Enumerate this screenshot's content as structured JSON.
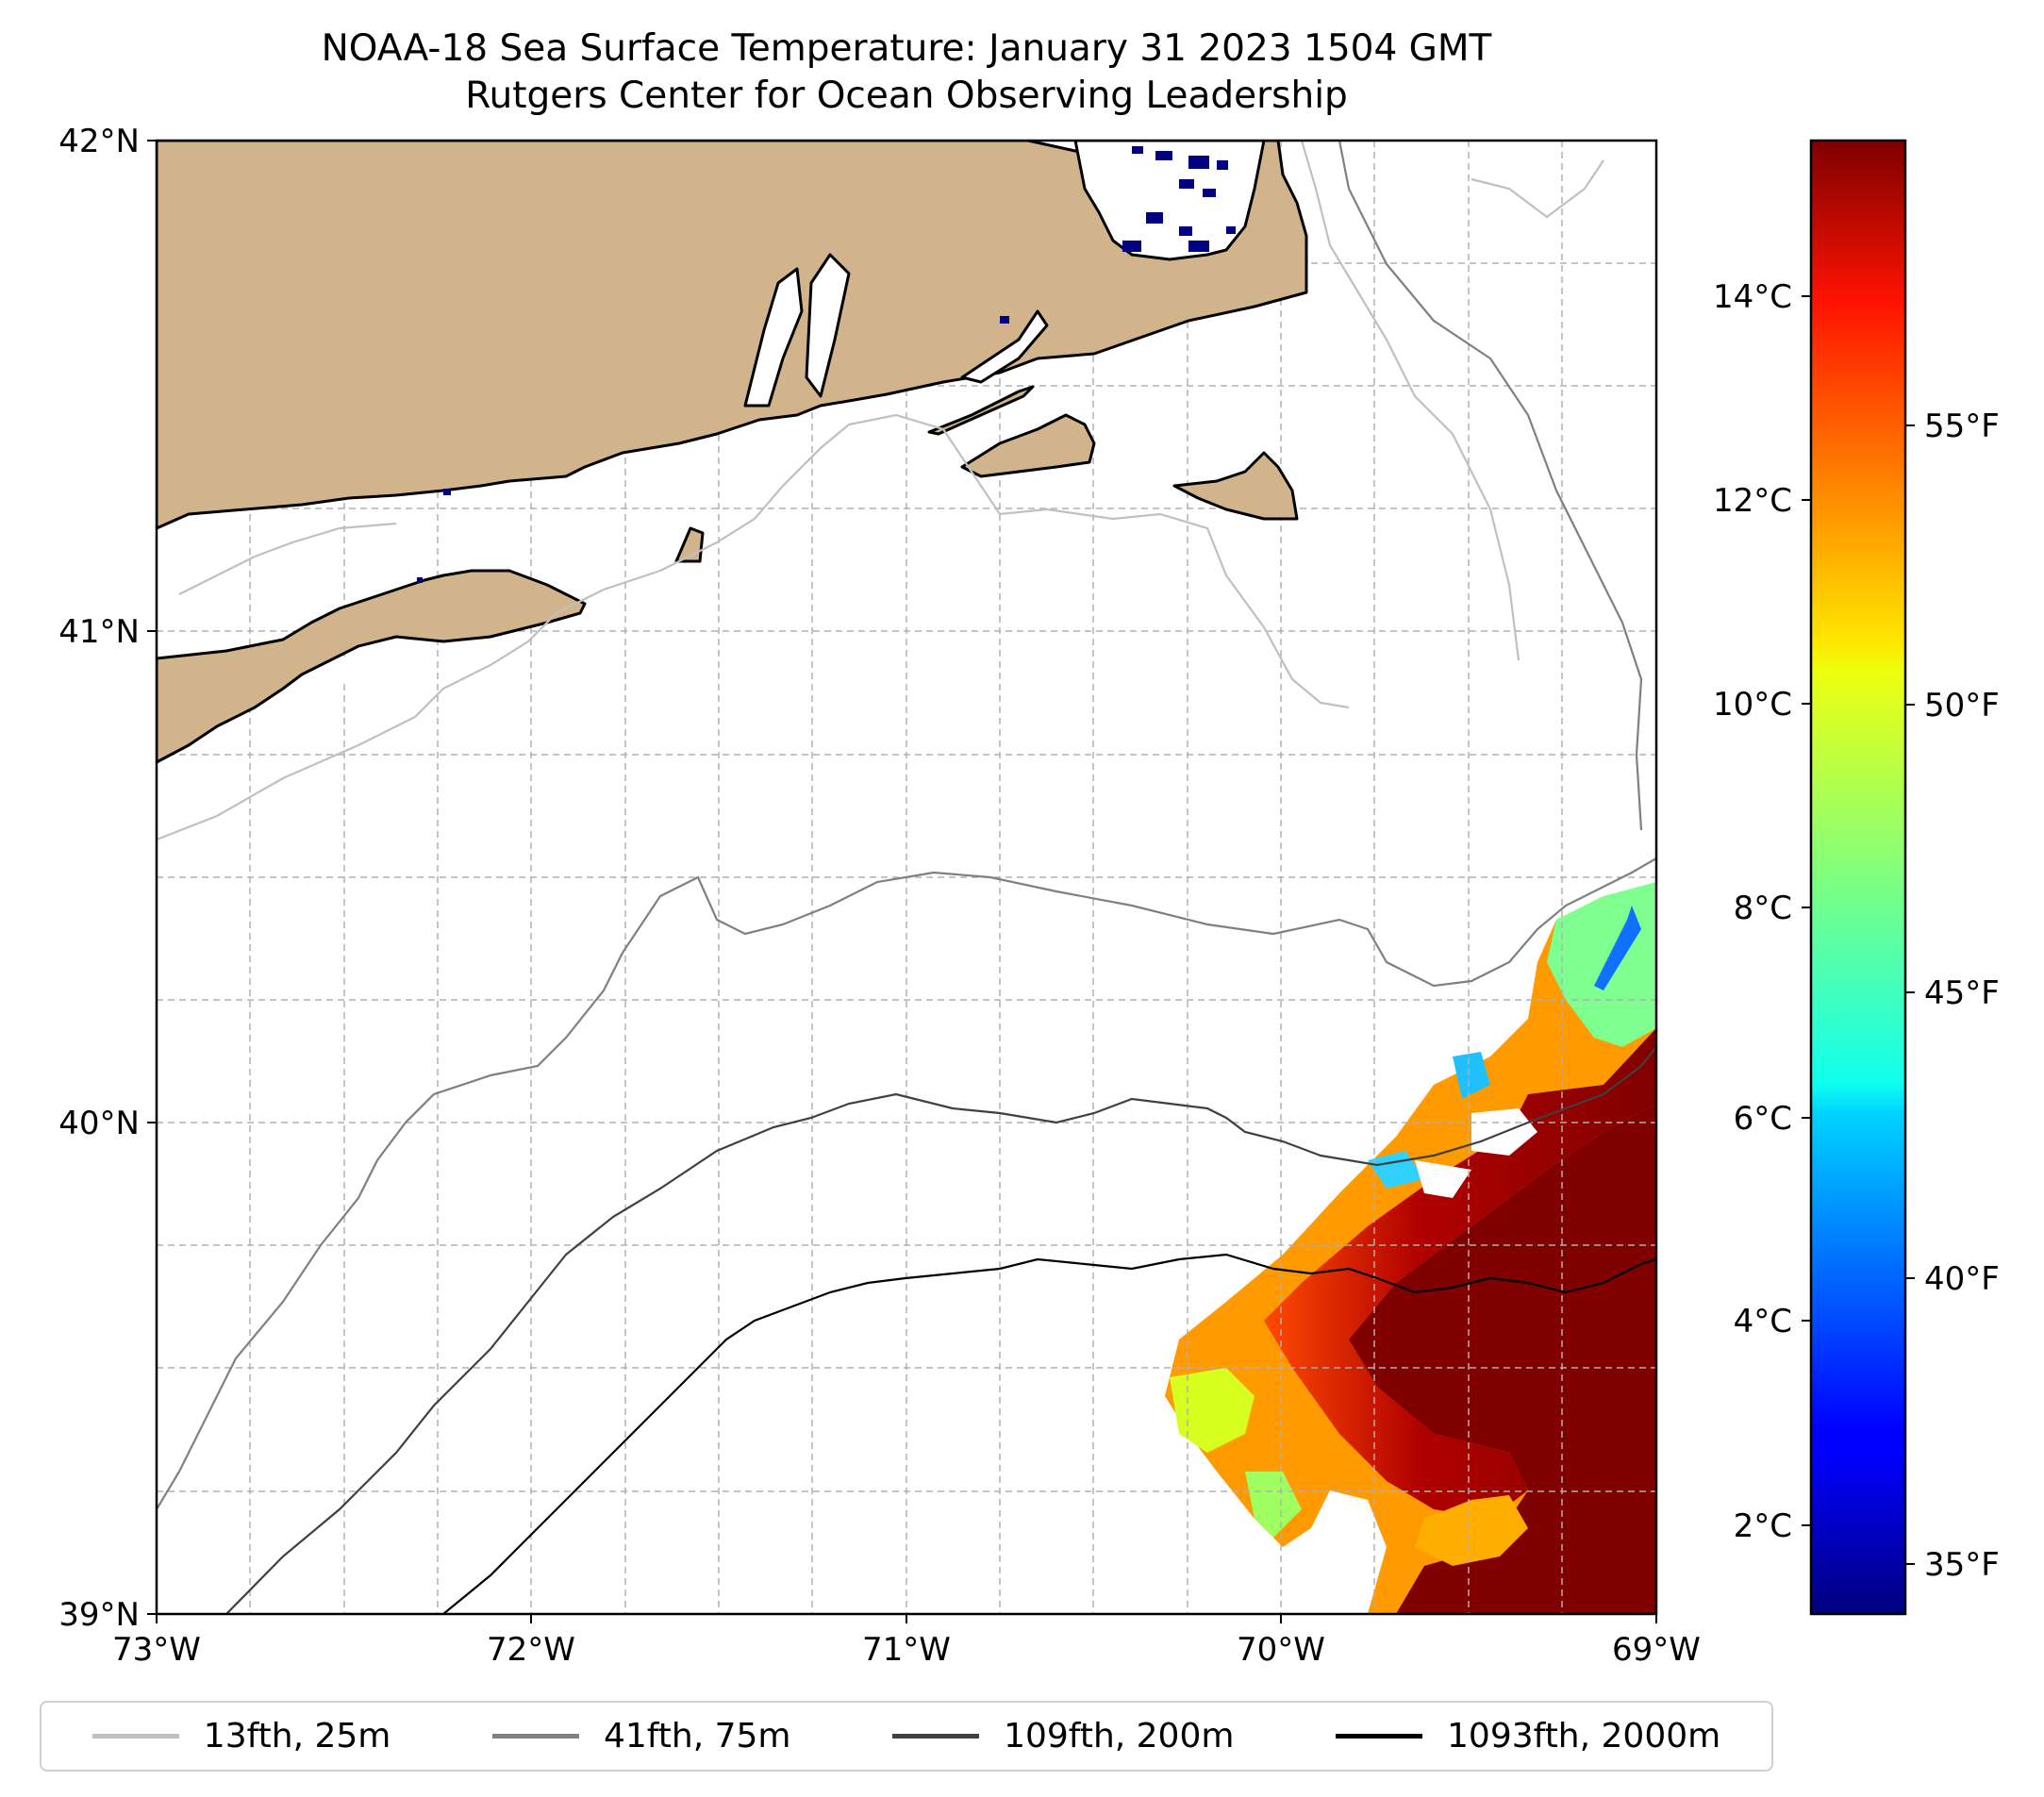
{
  "title": {
    "line1": "NOAA-18 Sea Surface Temperature: January 31 2023 1504 GMT",
    "line2": "Rutgers Center for Ocean Observing Leadership"
  },
  "map": {
    "lon_labels": [
      "73°W",
      "72°W",
      "71°W",
      "70°W",
      "69°W"
    ],
    "lat_labels": [
      "42°N",
      "41°N",
      "40°N",
      "39°N"
    ],
    "lon_range": [
      -73,
      -69
    ],
    "lat_range": [
      39,
      42
    ],
    "land_color": "#d2b48c",
    "missing_sst_color": "#000080"
  },
  "colorbar": {
    "celsius_labels": [
      "14°C",
      "12°C",
      "10°C",
      "8°C",
      "6°C",
      "4°C",
      "2°C"
    ],
    "fahrenheit_labels": [
      "55°F",
      "50°F",
      "45°F",
      "40°F",
      "35°F"
    ],
    "colormap": "jet",
    "range_celsius": [
      1.3,
      15.8
    ]
  },
  "legend": {
    "items": [
      {
        "label": "13fth, 25m",
        "color": "#c0c0c0"
      },
      {
        "label": "41fth, 75m",
        "color": "#808080"
      },
      {
        "label": "109fth, 200m",
        "color": "#404040"
      },
      {
        "label": "1093fth, 2000m",
        "color": "#000000"
      }
    ]
  }
}
